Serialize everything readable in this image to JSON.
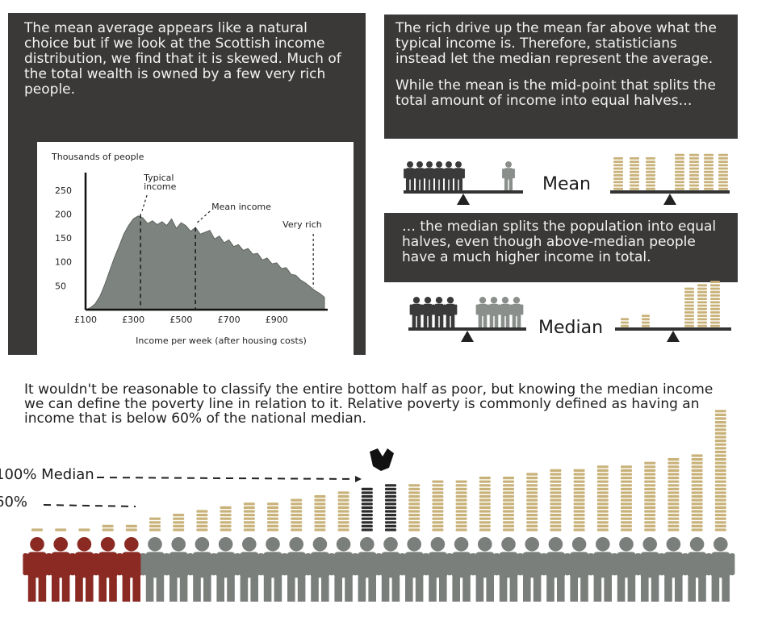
{
  "panel_top_left": {
    "text": "The mean average appears like a natural choice but if we look at the Scottish income distribution, we find that it is skewed. Much of the total wealth is owned by a few very rich people."
  },
  "panel_top_right": {
    "text1": "The rich drive up the mean far above what the typical income is. Therefore, statisticians instead let the median represent the average.",
    "text2": "While the mean is the mid-point that splits the total amount of income into equal halves…"
  },
  "panel_mid_right": {
    "text": "… the median splits the population into equal halves, even though above-median people have a much higher income in total."
  },
  "labels": {
    "mean": "Mean",
    "median": "Median"
  },
  "bottom": {
    "text": "It wouldn't be reasonable to classify the entire bottom half as poor, but knowing the median income we can define the poverty line in relation to it. Relative poverty is commonly defined as having an income that is below 60% of the national median.",
    "label_100": "100% Median",
    "label_60": "60%"
  },
  "colors": {
    "panel": "#3a3938",
    "grey_person": "#7b7f7c",
    "poor_person": "#8a2a22",
    "coin": "#c9b27a",
    "dark_coin": "#2c2c2c"
  },
  "chart_data": {
    "type": "area",
    "ylabel": "Thousands of people",
    "xlabel": "Income per week (after housing costs)",
    "yticks": [
      "250",
      "200",
      "150",
      "100",
      "50"
    ],
    "ytick_values": [
      250,
      200,
      150,
      100,
      50
    ],
    "xticks": [
      "£100",
      "£300",
      "£500",
      "£700",
      "£900"
    ],
    "xtick_values": [
      100,
      300,
      500,
      700,
      900
    ],
    "ylim": [
      0,
      280
    ],
    "xlim": [
      100,
      1100
    ],
    "x": [
      100,
      120,
      140,
      160,
      180,
      200,
      220,
      240,
      260,
      280,
      300,
      320,
      340,
      360,
      380,
      400,
      420,
      440,
      460,
      480,
      500,
      520,
      540,
      560,
      580,
      600,
      620,
      640,
      660,
      680,
      700,
      720,
      740,
      760,
      780,
      800,
      820,
      840,
      860,
      880,
      900,
      920,
      940,
      960,
      980,
      1000,
      1020,
      1040,
      1060,
      1080,
      1100
    ],
    "values": [
      0,
      4,
      12,
      28,
      52,
      80,
      108,
      132,
      158,
      176,
      190,
      196,
      192,
      180,
      186,
      178,
      184,
      176,
      190,
      170,
      182,
      176,
      164,
      172,
      158,
      162,
      166,
      148,
      154,
      140,
      146,
      132,
      136,
      124,
      128,
      116,
      118,
      104,
      108,
      96,
      98,
      86,
      88,
      74,
      72,
      62,
      56,
      48,
      40,
      34,
      26
    ],
    "annotations": [
      {
        "text": "Typical income",
        "x": 330
      },
      {
        "text": "Mean income",
        "x": 560
      },
      {
        "text": "Very rich",
        "x": 1060
      }
    ]
  }
}
